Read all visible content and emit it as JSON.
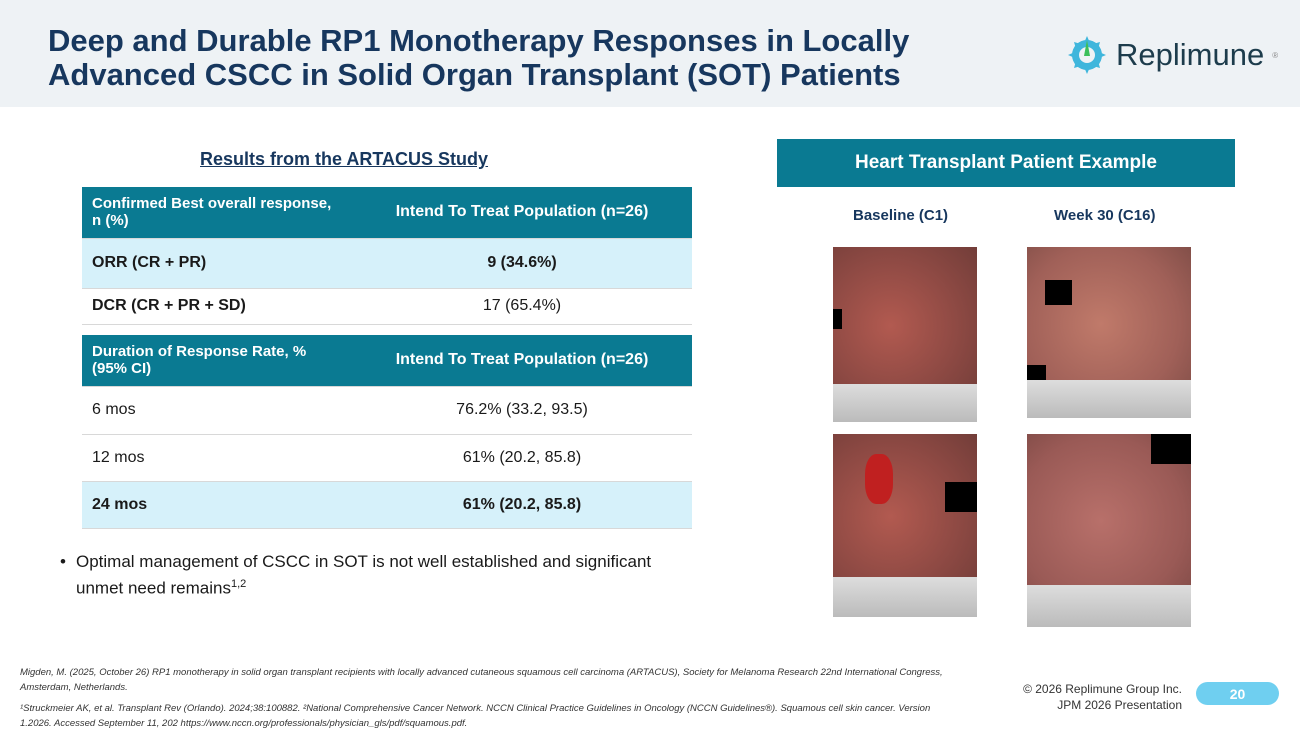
{
  "title_line1": "Deep and Durable RP1 Monotherapy Responses in Locally",
  "title_line2": "Advanced CSCC in Solid Organ Transplant (SOT) Patients",
  "logo": "Replimune",
  "subtitle": "Results from the ARTACUS Study",
  "table1": {
    "header": [
      "Confirmed Best overall response, n (%)",
      "Intend To Treat Population (n=26)"
    ],
    "rows": [
      [
        "ORR (CR + PR)",
        "9 (34.6%)"
      ],
      [
        "DCR (CR + PR + SD)",
        "17 (65.4%)"
      ]
    ]
  },
  "table2": {
    "header": [
      "Duration of Response Rate, % (95% CI)",
      "Intend To Treat Population (n=26)"
    ],
    "rows": [
      [
        "6 mos",
        "76.2% (33.2, 93.5)"
      ],
      [
        "12 mos",
        "61% (20.2, 85.8)"
      ],
      [
        "24 mos",
        "61% (20.2, 85.8)"
      ]
    ]
  },
  "bullet": "Optimal management of CSCC in SOT is not well established and significant unmet need remains",
  "bullet_sup": "1,2",
  "panel_title": "Heart Transplant Patient Example",
  "baseline_label": "Baseline (C1)",
  "week_label": "Week 30 (C16)",
  "ref1": "Migden, M. (2025, October 26) RP1 monotherapy in solid organ transplant recipients with locally advanced cutaneous squamous cell carcinoma (ARTACUS), Society for Melanoma Research 22nd International Congress, Amsterdam, Netherlands.",
  "ref2": "¹Struckmeier AK, et al. Transplant Rev (Orlando). 2024;38:100882. ²National Comprehensive Cancer Network. NCCN Clinical Practice Guidelines in Oncology (NCCN Guidelines®). Squamous cell skin cancer. Version 1.2026. Accessed September 11, 202 https://www.nccn.org/professionals/physician_gls/pdf/squamous.pdf.",
  "copyright": "© 2026 Replimune Group Inc.",
  "event": "JPM 2026 Presentation",
  "page_number": "20"
}
